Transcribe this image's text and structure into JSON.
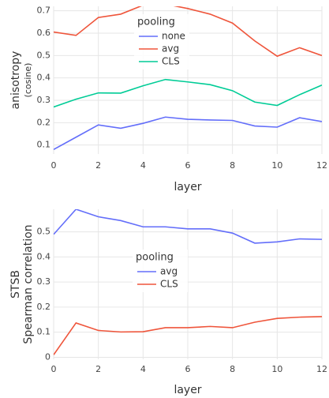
{
  "chart_data": [
    {
      "type": "line",
      "ylabel": "anisotropy",
      "ylabel_sub": "(cosine)",
      "xlabel": "layer",
      "legend_title": "pooling",
      "x": [
        0,
        1,
        2,
        3,
        4,
        5,
        6,
        7,
        8,
        9,
        10,
        11,
        12
      ],
      "xlim": [
        0,
        12
      ],
      "xticks": [
        0,
        2,
        4,
        6,
        8,
        10,
        12
      ],
      "ylim": [
        0.06,
        0.72
      ],
      "yticks": [
        0.1,
        0.2,
        0.3,
        0.4,
        0.5,
        0.6,
        0.7
      ],
      "grid": true,
      "series": [
        {
          "name": "none",
          "color": "#636efa",
          "values": [
            0.08,
            0.135,
            0.19,
            0.175,
            0.197,
            0.225,
            0.215,
            0.212,
            0.21,
            0.185,
            0.18,
            0.222,
            0.205
          ]
        },
        {
          "name": "avg",
          "color": "#ef553b",
          "values": [
            0.605,
            0.59,
            0.67,
            0.685,
            0.725,
            0.73,
            0.71,
            0.685,
            0.645,
            0.565,
            0.497,
            0.535,
            0.5
          ]
        },
        {
          "name": "CLS",
          "color": "#00cc96",
          "values": [
            0.27,
            0.305,
            0.333,
            0.332,
            0.365,
            0.393,
            0.382,
            0.37,
            0.343,
            0.292,
            0.277,
            0.325,
            0.368
          ]
        }
      ]
    },
    {
      "type": "line",
      "ylabel": "STSB",
      "ylabel_sub": "Spearman correlation",
      "xlabel": "layer",
      "legend_title": "pooling",
      "x": [
        0,
        1,
        2,
        3,
        4,
        5,
        6,
        7,
        8,
        9,
        10,
        11,
        12
      ],
      "xlim": [
        0,
        12
      ],
      "xticks": [
        0,
        2,
        4,
        6,
        8,
        10,
        12
      ],
      "ylim": [
        -0.008,
        0.59
      ],
      "yticks": [
        0,
        0.1,
        0.2,
        0.3,
        0.4,
        0.5
      ],
      "grid": true,
      "series": [
        {
          "name": "avg",
          "color": "#636efa",
          "values": [
            0.49,
            0.59,
            0.56,
            0.545,
            0.52,
            0.52,
            0.512,
            0.512,
            0.495,
            0.455,
            0.46,
            0.472,
            0.47
          ]
        },
        {
          "name": "CLS",
          "color": "#ef553b",
          "values": [
            0.01,
            0.137,
            0.107,
            0.101,
            0.102,
            0.118,
            0.118,
            0.123,
            0.118,
            0.14,
            0.155,
            0.16,
            0.162
          ]
        }
      ]
    }
  ]
}
